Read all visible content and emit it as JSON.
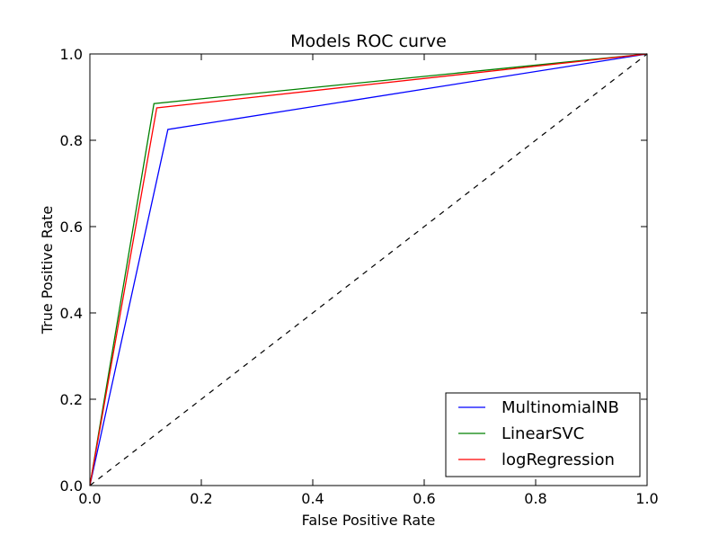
{
  "chart_data": {
    "type": "line",
    "title": "Models ROC curve",
    "xlabel": "False Positive Rate",
    "ylabel": "True Positive Rate",
    "xlim": [
      0.0,
      1.0
    ],
    "ylim": [
      0.0,
      1.0
    ],
    "xticks": [
      0.0,
      0.2,
      0.4,
      0.6,
      0.8,
      1.0
    ],
    "yticks": [
      0.0,
      0.2,
      0.4,
      0.6,
      0.8,
      1.0
    ],
    "xtick_labels": [
      "0.0",
      "0.2",
      "0.4",
      "0.6",
      "0.8",
      "1.0"
    ],
    "ytick_labels": [
      "0.0",
      "0.2",
      "0.4",
      "0.6",
      "0.8",
      "1.0"
    ],
    "grid": false,
    "legend_position": "lower-right",
    "series": [
      {
        "name": "MultinomialNB",
        "color": "#0000ff",
        "x": [
          0.0,
          0.14,
          1.0
        ],
        "y": [
          0.0,
          0.825,
          1.0
        ]
      },
      {
        "name": "LinearSVC",
        "color": "#008000",
        "x": [
          0.0,
          0.115,
          1.0
        ],
        "y": [
          0.0,
          0.885,
          1.0
        ]
      },
      {
        "name": "logRegression",
        "color": "#ff0000",
        "x": [
          0.0,
          0.12,
          1.0
        ],
        "y": [
          0.0,
          0.875,
          1.0
        ]
      }
    ],
    "reference_line": {
      "color": "#000000",
      "style": "dashed",
      "x": [
        0.0,
        1.0
      ],
      "y": [
        0.0,
        1.0
      ]
    }
  }
}
